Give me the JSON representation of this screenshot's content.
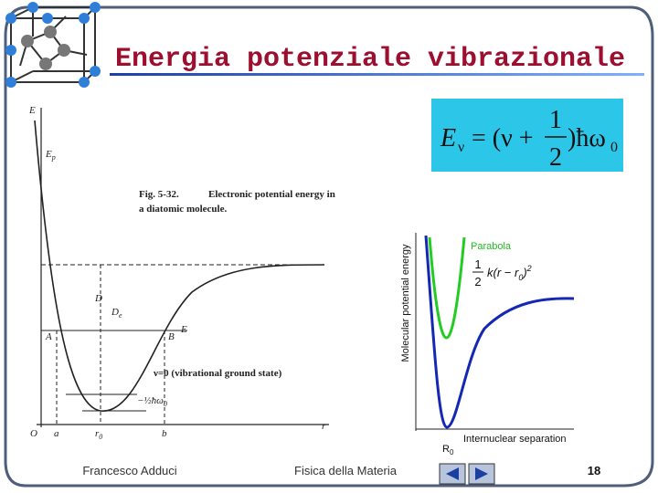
{
  "header": {
    "title": "Energia potenziale vibrazionale"
  },
  "formula": {
    "lhs": "E",
    "lhs_sub": "ν",
    "eq": "= (ν +",
    "num": "1",
    "den": "2",
    "rhs": ")ħω",
    "rhs_sub": "0"
  },
  "left_figure": {
    "caption_fig": "Fig. 5-32.",
    "caption_line1": "Electronic potential energy in",
    "caption_line2": "a diatomic molecule.",
    "axis_y": "E",
    "axis_x": "r",
    "ep": {
      "main": "E",
      "sub": "p"
    },
    "d": "D",
    "de": {
      "main": "D",
      "sub": "e"
    },
    "point_a": "A",
    "point_b": "B",
    "level_e": "E",
    "ground": "ν=0 (vibrational ground state)",
    "half": "−½ħω",
    "half_sub": "0",
    "origin": "O",
    "tick_a": "a",
    "tick_r0": {
      "main": "r",
      "sub": "0"
    },
    "tick_b": "b"
  },
  "right_figure": {
    "parabola": "Parabola",
    "frac_num": "1",
    "frac_den": "2",
    "expr": "k(r − r",
    "expr_sub": "0",
    "expr_end": ")",
    "expr_sup": "2",
    "y_label": "Molecular potential energy",
    "x_label": "Internuclear separation",
    "r0": {
      "main": "R",
      "sub": "0"
    }
  },
  "footer": {
    "author": "Francesco Adduci",
    "course": "Fisica della Materia",
    "page": "18"
  }
}
